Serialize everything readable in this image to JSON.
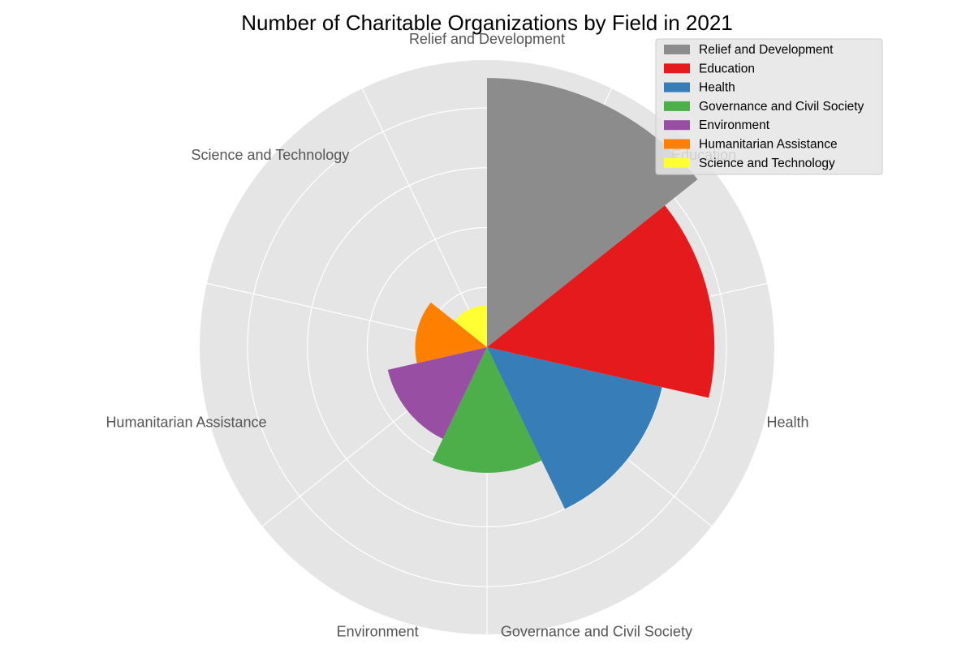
{
  "chart_data": {
    "type": "polar-bar",
    "title": "Number of Charitable Organizations by Field in 2021",
    "categories": [
      "Relief and Development",
      "Education",
      "Health",
      "Governance and Civil Society",
      "Environment",
      "Humanitarian Assistance",
      "Science and Technology"
    ],
    "values": [
      450,
      380,
      300,
      210,
      170,
      120,
      70
    ],
    "colors": [
      "#8c8c8c",
      "#e41a1c",
      "#377eb8",
      "#4daf4a",
      "#984ea3",
      "#ff7f00",
      "#ffff33"
    ],
    "rlim": [
      0,
      480
    ],
    "rgrid": [
      100,
      200,
      300,
      400
    ],
    "grid": true,
    "legend": {
      "placement": "top-right",
      "entries": [
        "Relief and Development",
        "Education",
        "Health",
        "Governance and Civil Society",
        "Environment",
        "Humanitarian Assistance",
        "Science and Technology"
      ]
    }
  }
}
